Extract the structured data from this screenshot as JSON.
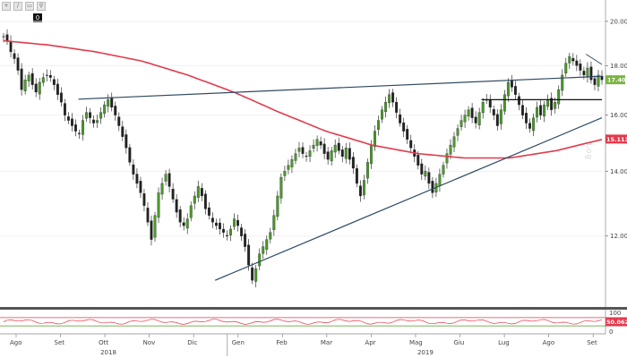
{
  "toolbar": {
    "buttons": [
      "zoom-in-icon",
      "pen-icon",
      "eraser-icon",
      "search-icon"
    ],
    "badge": "0"
  },
  "watermark": "Log",
  "chart_data": {
    "type": "candlestick",
    "title": "",
    "y_scale": "log",
    "ylim": [
      10.2,
      20.6
    ],
    "yticks": [
      "20.00",
      "18.00",
      "16.00",
      "14.00",
      "12.00"
    ],
    "ytick_values": [
      20,
      18,
      16,
      14,
      12
    ],
    "last_price": "17.405",
    "ma_value": "15.1138",
    "colors": {
      "up": "#4a9a2a",
      "down": "#222222",
      "ma": "#e23a4b",
      "trend": "#2f4a62",
      "last": "#7ab342",
      "ma_box": "#e23a4b"
    },
    "months": [
      "Ago",
      "Set",
      "Ott",
      "Nov",
      "Dic",
      "Gen",
      "Feb",
      "Mar",
      "Apr",
      "Mag",
      "Giu",
      "Lug",
      "Ago",
      "Set"
    ],
    "years": [
      "2018",
      "2019"
    ],
    "close": [
      19.3,
      19.1,
      18.6,
      18.3,
      17.8,
      17.0,
      17.4,
      17.6,
      17.2,
      16.9,
      17.3,
      17.5,
      17.6,
      17.5,
      17.2,
      16.8,
      16.5,
      16.0,
      15.8,
      15.6,
      15.4,
      15.3,
      15.8,
      16.1,
      15.9,
      15.7,
      15.8,
      16.1,
      16.4,
      16.6,
      16.3,
      16.0,
      15.6,
      15.2,
      14.8,
      14.3,
      13.9,
      13.6,
      13.3,
      12.9,
      12.4,
      11.9,
      12.6,
      13.3,
      13.6,
      13.9,
      13.5,
      13.1,
      12.7,
      12.4,
      12.3,
      12.5,
      12.9,
      13.2,
      13.5,
      13.2,
      12.8,
      12.6,
      12.4,
      12.3,
      12.2,
      12.1,
      12.0,
      12.2,
      12.5,
      12.3,
      12.0,
      11.7,
      11.2,
      10.8,
      11.1,
      11.5,
      11.7,
      11.9,
      12.1,
      12.6,
      13.2,
      13.8,
      14.0,
      14.2,
      14.4,
      14.6,
      14.8,
      14.6,
      14.5,
      14.7,
      14.9,
      15.1,
      14.9,
      14.6,
      14.4,
      14.7,
      14.9,
      14.7,
      14.5,
      14.8,
      14.4,
      14.1,
      13.6,
      13.2,
      13.7,
      14.3,
      14.9,
      15.4,
      15.8,
      16.2,
      16.5,
      16.8,
      16.5,
      16.1,
      15.7,
      15.4,
      15.1,
      14.8,
      14.5,
      14.2,
      13.9,
      14.0,
      13.6,
      13.3,
      13.6,
      13.9,
      14.2,
      14.6,
      14.9,
      15.2,
      15.5,
      15.8,
      16.0,
      16.2,
      15.9,
      15.7,
      16.1,
      16.5,
      16.6,
      16.3,
      16.0,
      15.6,
      16.2,
      16.8,
      17.3,
      17.1,
      16.8,
      16.4,
      16.0,
      15.7,
      15.5,
      15.9,
      16.3,
      16.0,
      16.4,
      16.6,
      16.2,
      16.5,
      17.0,
      17.6,
      18.1,
      18.4,
      18.2,
      18.0,
      17.8,
      17.6,
      17.9,
      17.4,
      17.2,
      17.6,
      17.405
    ],
    "open_offset_pattern": "derived",
    "ma_200": [
      19.1,
      18.9,
      18.6,
      18.2,
      17.6,
      16.9,
      16.1,
      15.4,
      14.9,
      14.6,
      14.45,
      14.45,
      14.7,
      15.1
    ],
    "trendlines": [
      {
        "name": "upper-resistance",
        "from": [
          "Set",
          16.62
        ],
        "to": [
          "Set-end",
          17.55
        ]
      },
      {
        "name": "rising-support",
        "from": [
          "Dic",
          10.8
        ],
        "to": [
          "Set-end",
          15.9
        ]
      },
      {
        "name": "horizontal-level",
        "from": [
          "Giu",
          16.6
        ],
        "to": [
          "Set-end",
          16.6
        ]
      },
      {
        "name": "short-down",
        "from": [
          "Set",
          18.5
        ],
        "to": [
          "Set-end",
          18.05
        ]
      }
    ],
    "oscillator": {
      "ylim": [
        0,
        100
      ],
      "yticks": [
        "100",
        "0"
      ],
      "value": "50.0625",
      "bands": [
        70,
        30
      ]
    }
  }
}
